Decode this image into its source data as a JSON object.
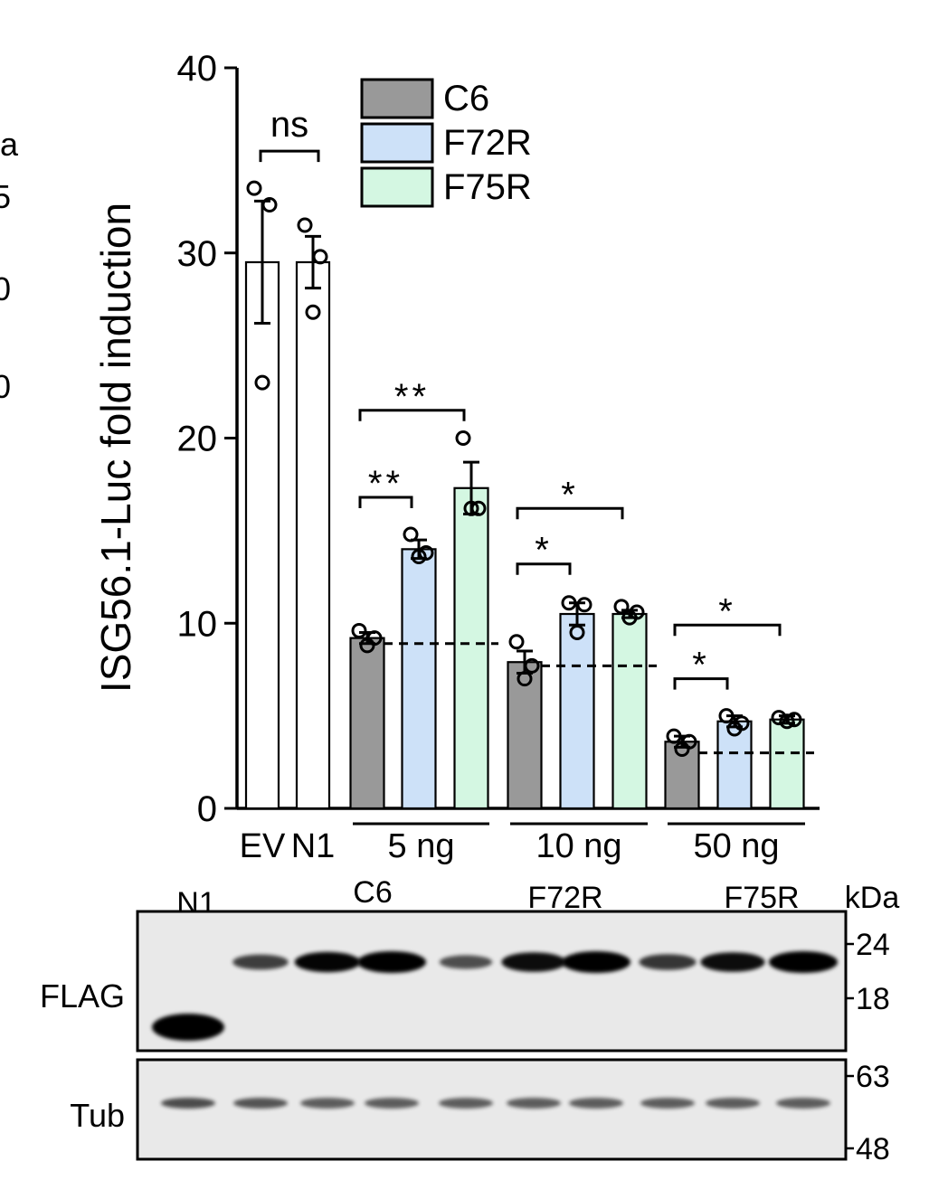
{
  "chart_data": {
    "type": "bar",
    "ylabel": "ISG56.1-Luc fold induction",
    "ylim": [
      0,
      40
    ],
    "yticks": [
      0,
      10,
      20,
      30,
      40
    ],
    "grid": false,
    "legend_position": "top",
    "legend": [
      {
        "name": "C6",
        "color": "#999999"
      },
      {
        "name": "F72R",
        "color": "#cde1f8"
      },
      {
        "name": "F75R",
        "color": "#d4f7e2"
      }
    ],
    "controls": [
      {
        "label": "EV",
        "mean": 29.5,
        "sem": 3.3,
        "points": [
          33.5,
          32.6,
          23.0
        ]
      },
      {
        "label": "N1",
        "mean": 29.5,
        "sem": 1.4,
        "points": [
          31.5,
          29.8,
          26.8
        ]
      }
    ],
    "groups": [
      {
        "label": "5 ng",
        "baseline": 8.9,
        "bars": [
          {
            "series": "C6",
            "mean": 9.2,
            "sem": 0.3,
            "points": [
              9.6,
              9.2,
              8.8
            ]
          },
          {
            "series": "F72R",
            "mean": 14.0,
            "sem": 0.5,
            "points": [
              14.8,
              13.8,
              13.6
            ]
          },
          {
            "series": "F75R",
            "mean": 17.3,
            "sem": 1.4,
            "points": [
              20.0,
              16.2,
              16.2
            ]
          }
        ]
      },
      {
        "label": "10 ng",
        "baseline": 7.7,
        "bars": [
          {
            "series": "C6",
            "mean": 7.9,
            "sem": 0.6,
            "points": [
              9.0,
              7.7,
              7.0
            ]
          },
          {
            "series": "F72R",
            "mean": 10.5,
            "sem": 0.6,
            "points": [
              11.1,
              11.0,
              9.5
            ]
          },
          {
            "series": "F75R",
            "mean": 10.5,
            "sem": 0.2,
            "points": [
              10.9,
              10.6,
              10.3
            ]
          }
        ]
      },
      {
        "label": "50 ng",
        "baseline": 3.0,
        "bars": [
          {
            "series": "C6",
            "mean": 3.6,
            "sem": 0.3,
            "points": [
              3.9,
              3.6,
              3.2
            ]
          },
          {
            "series": "F72R",
            "mean": 4.7,
            "sem": 0.3,
            "points": [
              5.0,
              4.6,
              4.3
            ]
          },
          {
            "series": "F75R",
            "mean": 4.8,
            "sem": 0.2,
            "points": [
              4.9,
              4.8,
              4.7
            ]
          }
        ]
      }
    ],
    "significance": [
      {
        "text": "ns",
        "from": "EV",
        "to": "N1"
      },
      {
        "text": "**",
        "from": "5 ng C6",
        "to": "5 ng F72R"
      },
      {
        "text": "**",
        "from": "5 ng C6",
        "to": "5 ng F75R"
      },
      {
        "text": "*",
        "from": "10 ng C6",
        "to": "10 ng F72R"
      },
      {
        "text": "*",
        "from": "10 ng C6",
        "to": "10 ng F75R"
      },
      {
        "text": "*",
        "from": "50 ng C6",
        "to": "50 ng F72R"
      },
      {
        "text": "*",
        "from": "50 ng C6",
        "to": "50 ng F75R"
      }
    ]
  },
  "blot": {
    "lane_groups": [
      "N1",
      "C6",
      "F72R",
      "F75R"
    ],
    "unit_label": "kDa",
    "panels": [
      {
        "label": "FLAG",
        "markers": [
          "24",
          "18"
        ],
        "band_intensity": [
          1.0,
          0.55,
          0.9,
          1.0,
          0.45,
          0.85,
          1.0,
          0.6,
          0.85,
          1.0
        ]
      },
      {
        "label": "Tub",
        "markers": [
          "63",
          "48"
        ],
        "band_intensity": [
          0.9,
          0.85,
          0.8,
          0.8,
          0.8,
          0.8,
          0.8,
          0.8,
          0.8,
          0.8
        ]
      }
    ]
  },
  "edge_fragments": [
    "a",
    "5",
    "0",
    "0"
  ]
}
